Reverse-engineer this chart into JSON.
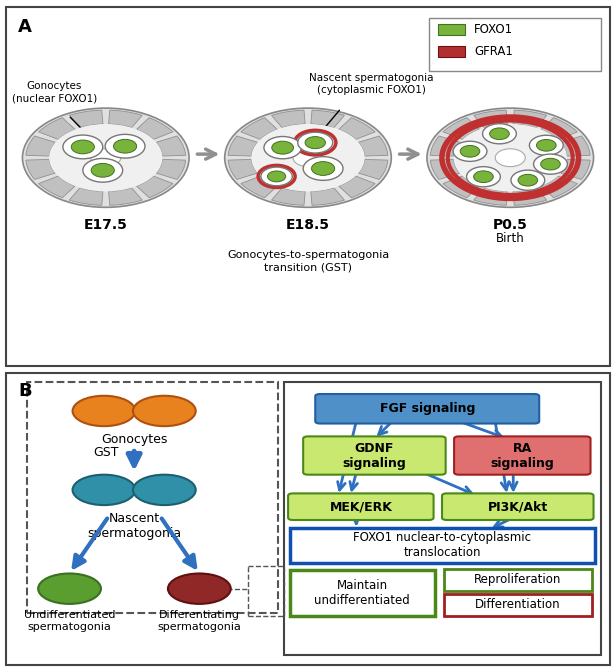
{
  "label_E175": "E17.5",
  "label_E185": "E18.5",
  "label_P05": "P0.5",
  "label_birth": "Birth",
  "label_GST": "Gonocytes-to-spermatogonia\ntransition (GST)",
  "label_gonocytes_annot": "Gonocytes\n(nuclear FOXO1)",
  "label_nascent_annot": "Nascent spermatogonia\n(cytoplasmic FOXO1)",
  "legend_FOXO1": "FOXO1",
  "legend_GFRA1": "GFRA1",
  "foxo1_color": "#78b43c",
  "gfra1_color": "#b03030",
  "gonocytes_label": "Gonocytes",
  "GST_label": "GST",
  "nascent_label": "Nascent\nspermatogonia",
  "undiff_label": "Undifferentiated\nspermatogonia",
  "diff_label": "Differentiating\nspermatogonia",
  "orange_color": "#e8821e",
  "teal_color": "#3090a8",
  "green_circle_color": "#5a9e30",
  "dark_red_color": "#902828",
  "box_blue_fill": "#5090c8",
  "box_blue_border": "#2060a0",
  "box_green_fill": "#c8e870",
  "box_green_border": "#4a8818",
  "box_red_fill": "#e07070",
  "box_red_border": "#a02020",
  "box_white_blue_border": "#1050b0",
  "box_white_green_border": "#4a8818",
  "box_white_red_border": "#a02020",
  "arrow_color": "#3070c0",
  "gray_arrow_color": "#909090",
  "tubule_outer": "#d8d8d8",
  "tubule_sertoli": "#c0c0c0",
  "tubule_lumen": "#ffffff",
  "gfra1_red": "#c03030"
}
